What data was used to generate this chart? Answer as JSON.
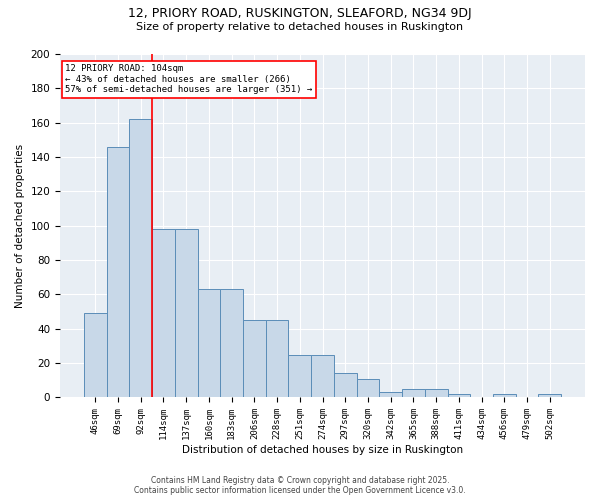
{
  "title1": "12, PRIORY ROAD, RUSKINGTON, SLEAFORD, NG34 9DJ",
  "title2": "Size of property relative to detached houses in Ruskington",
  "xlabel": "Distribution of detached houses by size in Ruskington",
  "ylabel": "Number of detached properties",
  "categories": [
    "46sqm",
    "69sqm",
    "92sqm",
    "114sqm",
    "137sqm",
    "160sqm",
    "183sqm",
    "206sqm",
    "228sqm",
    "251sqm",
    "274sqm",
    "297sqm",
    "320sqm",
    "342sqm",
    "365sqm",
    "388sqm",
    "411sqm",
    "434sqm",
    "456sqm",
    "479sqm",
    "502sqm"
  ],
  "values": [
    49,
    146,
    162,
    98,
    98,
    63,
    63,
    45,
    45,
    25,
    25,
    14,
    11,
    3,
    5,
    5,
    2,
    0,
    2,
    0,
    2
  ],
  "bar_color": "#c8d8e8",
  "bar_edge_color": "#5b8db8",
  "red_line_x": 2.5,
  "annotation_text": "12 PRIORY ROAD: 104sqm\n← 43% of detached houses are smaller (266)\n57% of semi-detached houses are larger (351) →",
  "footnote1": "Contains HM Land Registry data © Crown copyright and database right 2025.",
  "footnote2": "Contains public sector information licensed under the Open Government Licence v3.0.",
  "ylim": [
    0,
    200
  ],
  "yticks": [
    0,
    20,
    40,
    60,
    80,
    100,
    120,
    140,
    160,
    180,
    200
  ],
  "bg_color": "#e8eef4",
  "fig_width": 6.0,
  "fig_height": 5.0,
  "dpi": 100
}
